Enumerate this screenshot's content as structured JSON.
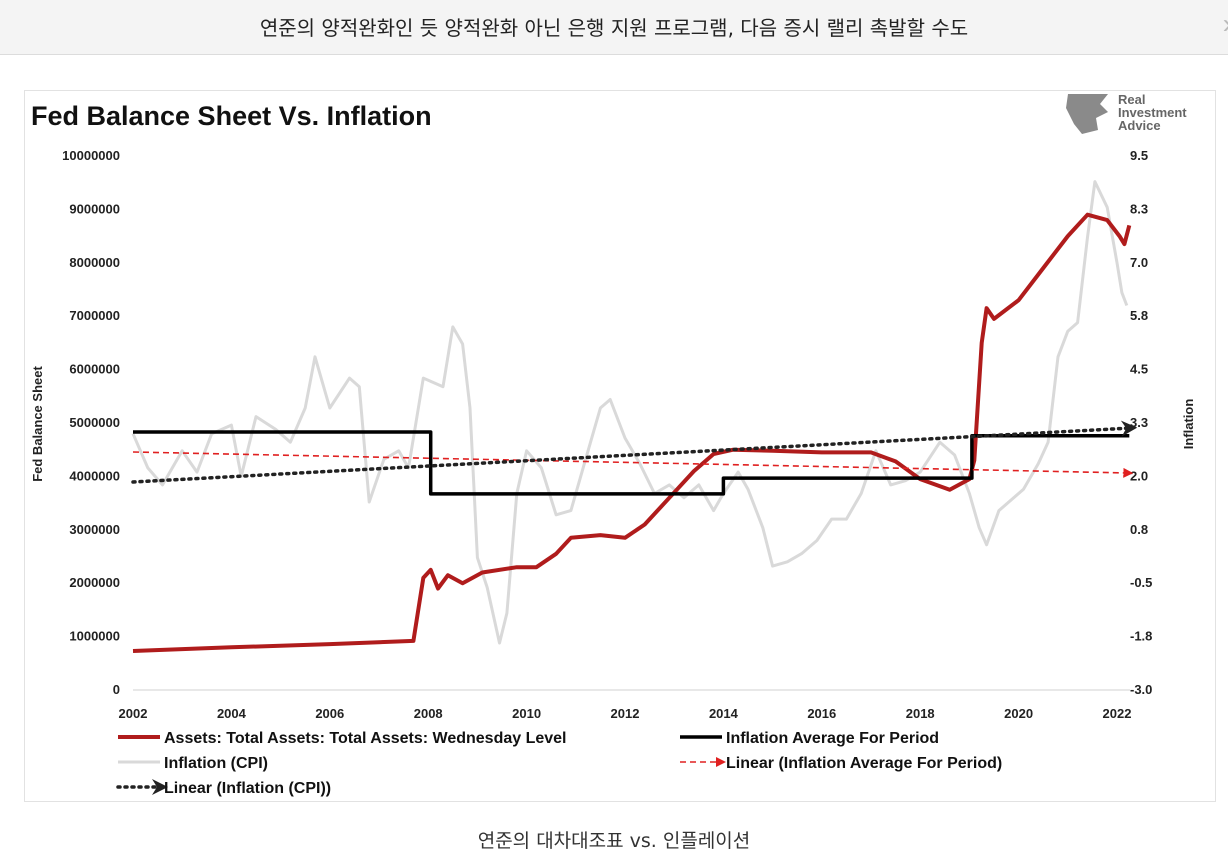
{
  "header": {
    "title": "연준의 양적완화인 듯 양적완화 아닌 은행 지원 프로그램, 다음 증시 랠리 촉발할 수도",
    "next_icon": "chevron-right-icon"
  },
  "caption": "연준의 대차대조표 vs. 인플레이션",
  "logo": {
    "text_lines": [
      "Real",
      "Investment",
      "Advice"
    ]
  },
  "colors": {
    "assets": "#b01c1c",
    "cpi": "#d9d9d9",
    "average": "#000000",
    "linear_avg": "#e02020",
    "linear_cpi": "#222222"
  },
  "chart_data": {
    "type": "line",
    "title": "Fed Balance Sheet Vs. Inflation",
    "ylabel": "Fed Balance Sheet",
    "y2label": "Inflation",
    "xlim": [
      2002,
      2022.25
    ],
    "ylim": [
      0,
      10000000
    ],
    "y2lim": [
      -3.0,
      9.5
    ],
    "xticks": [
      "2002",
      "2004",
      "2006",
      "2008",
      "2010",
      "2012",
      "2014",
      "2016",
      "2018",
      "2020",
      "2022"
    ],
    "yticks": [
      "0",
      "1000000",
      "2000000",
      "3000000",
      "4000000",
      "5000000",
      "6000000",
      "7000000",
      "8000000",
      "9000000",
      "10000000"
    ],
    "y2ticks": [
      "-3.0",
      "-1.8",
      "-0.5",
      "0.8",
      "2.0",
      "3.3",
      "4.5",
      "5.8",
      "7.0",
      "8.3",
      "9.5"
    ],
    "grid": false,
    "legend_position": "bottom",
    "series": [
      {
        "name": "Inflation (CPI)",
        "axis": "right",
        "style": "solid-gray",
        "points": [
          [
            2002,
            3.0
          ],
          [
            2002.3,
            2.2
          ],
          [
            2002.6,
            1.8
          ],
          [
            2003,
            2.6
          ],
          [
            2003.3,
            2.1
          ],
          [
            2003.6,
            3.0
          ],
          [
            2004,
            3.2
          ],
          [
            2004.2,
            2.0
          ],
          [
            2004.5,
            3.4
          ],
          [
            2004.9,
            3.1
          ],
          [
            2005.2,
            2.8
          ],
          [
            2005.5,
            3.6
          ],
          [
            2005.7,
            4.8
          ],
          [
            2006,
            3.6
          ],
          [
            2006.4,
            4.3
          ],
          [
            2006.6,
            4.1
          ],
          [
            2006.8,
            1.4
          ],
          [
            2007.1,
            2.4
          ],
          [
            2007.4,
            2.6
          ],
          [
            2007.6,
            2.2
          ],
          [
            2007.9,
            4.3
          ],
          [
            2008.3,
            4.1
          ],
          [
            2008.5,
            5.5
          ],
          [
            2008.7,
            5.1
          ],
          [
            2008.85,
            3.6
          ],
          [
            2009.0,
            0.1
          ],
          [
            2009.2,
            -0.6
          ],
          [
            2009.45,
            -1.9
          ],
          [
            2009.6,
            -1.2
          ],
          [
            2009.8,
            1.6
          ],
          [
            2010,
            2.6
          ],
          [
            2010.3,
            2.2
          ],
          [
            2010.6,
            1.1
          ],
          [
            2010.9,
            1.2
          ],
          [
            2011.2,
            2.4
          ],
          [
            2011.5,
            3.6
          ],
          [
            2011.7,
            3.8
          ],
          [
            2012,
            2.9
          ],
          [
            2012.3,
            2.3
          ],
          [
            2012.6,
            1.6
          ],
          [
            2012.9,
            1.8
          ],
          [
            2013.2,
            1.5
          ],
          [
            2013.5,
            1.8
          ],
          [
            2013.8,
            1.2
          ],
          [
            2014,
            1.6
          ],
          [
            2014.3,
            2.1
          ],
          [
            2014.5,
            1.7
          ],
          [
            2014.8,
            0.8
          ],
          [
            2015.0,
            -0.1
          ],
          [
            2015.3,
            0.0
          ],
          [
            2015.6,
            0.2
          ],
          [
            2015.9,
            0.5
          ],
          [
            2016.2,
            1.0
          ],
          [
            2016.5,
            1.0
          ],
          [
            2016.8,
            1.6
          ],
          [
            2017.1,
            2.6
          ],
          [
            2017.4,
            1.8
          ],
          [
            2017.7,
            1.9
          ],
          [
            2018,
            2.1
          ],
          [
            2018.4,
            2.8
          ],
          [
            2018.7,
            2.5
          ],
          [
            2019,
            1.6
          ],
          [
            2019.2,
            0.8
          ],
          [
            2019.35,
            0.4
          ],
          [
            2019.6,
            1.2
          ],
          [
            2019.9,
            1.5
          ],
          [
            2020.1,
            1.7
          ],
          [
            2020.4,
            2.3
          ],
          [
            2020.6,
            2.8
          ],
          [
            2020.8,
            4.8
          ],
          [
            2021.0,
            5.4
          ],
          [
            2021.2,
            5.6
          ],
          [
            2021.4,
            7.6
          ],
          [
            2021.55,
            8.9
          ],
          [
            2021.8,
            8.3
          ],
          [
            2022.0,
            7.0
          ],
          [
            2022.1,
            6.3
          ],
          [
            2022.2,
            6.0
          ]
        ]
      },
      {
        "name": "Assets: Total Assets: Total Assets: Wednesday Level",
        "axis": "left",
        "style": "solid-red",
        "points": [
          [
            2002,
            730000
          ],
          [
            2004,
            800000
          ],
          [
            2006,
            860000
          ],
          [
            2007.7,
            920000
          ],
          [
            2007.9,
            2100000
          ],
          [
            2008.05,
            2250000
          ],
          [
            2008.2,
            1900000
          ],
          [
            2008.4,
            2150000
          ],
          [
            2008.7,
            2000000
          ],
          [
            2009.1,
            2200000
          ],
          [
            2009.8,
            2300000
          ],
          [
            2010.2,
            2300000
          ],
          [
            2010.6,
            2550000
          ],
          [
            2010.9,
            2850000
          ],
          [
            2011.5,
            2900000
          ],
          [
            2012.0,
            2850000
          ],
          [
            2012.4,
            3100000
          ],
          [
            2012.9,
            3600000
          ],
          [
            2013.4,
            4100000
          ],
          [
            2013.8,
            4420000
          ],
          [
            2014.2,
            4500000
          ],
          [
            2015,
            4480000
          ],
          [
            2016,
            4450000
          ],
          [
            2017.0,
            4450000
          ],
          [
            2017.5,
            4280000
          ],
          [
            2018.0,
            3950000
          ],
          [
            2018.6,
            3750000
          ],
          [
            2019.0,
            3950000
          ],
          [
            2019.1,
            4300000
          ],
          [
            2019.25,
            6500000
          ],
          [
            2019.35,
            7150000
          ],
          [
            2019.5,
            6950000
          ],
          [
            2020,
            7300000
          ],
          [
            2020.5,
            7900000
          ],
          [
            2021,
            8500000
          ],
          [
            2021.4,
            8900000
          ],
          [
            2021.8,
            8800000
          ],
          [
            2022.05,
            8500000
          ],
          [
            2022.15,
            8350000
          ],
          [
            2022.25,
            8700000
          ]
        ]
      },
      {
        "name": "Inflation Average For Period",
        "axis": "right",
        "style": "step-black",
        "points": [
          [
            2002,
            3.04
          ],
          [
            2008.05,
            3.04
          ],
          [
            2008.05,
            1.59
          ],
          [
            2014.0,
            1.59
          ],
          [
            2014.0,
            1.96
          ],
          [
            2019.05,
            1.96
          ],
          [
            2019.05,
            2.95
          ],
          [
            2022.25,
            2.95
          ]
        ]
      },
      {
        "name": "Linear (Inflation Average For Period)",
        "axis": "right",
        "style": "dashed-red-arrow",
        "points": [
          [
            2002,
            2.57
          ],
          [
            2022.25,
            2.08
          ]
        ]
      },
      {
        "name": "Linear (Inflation (CPI))",
        "axis": "right",
        "style": "dotted-black-arrow",
        "points": [
          [
            2002,
            1.87
          ],
          [
            2022.25,
            3.13
          ]
        ]
      }
    ]
  }
}
